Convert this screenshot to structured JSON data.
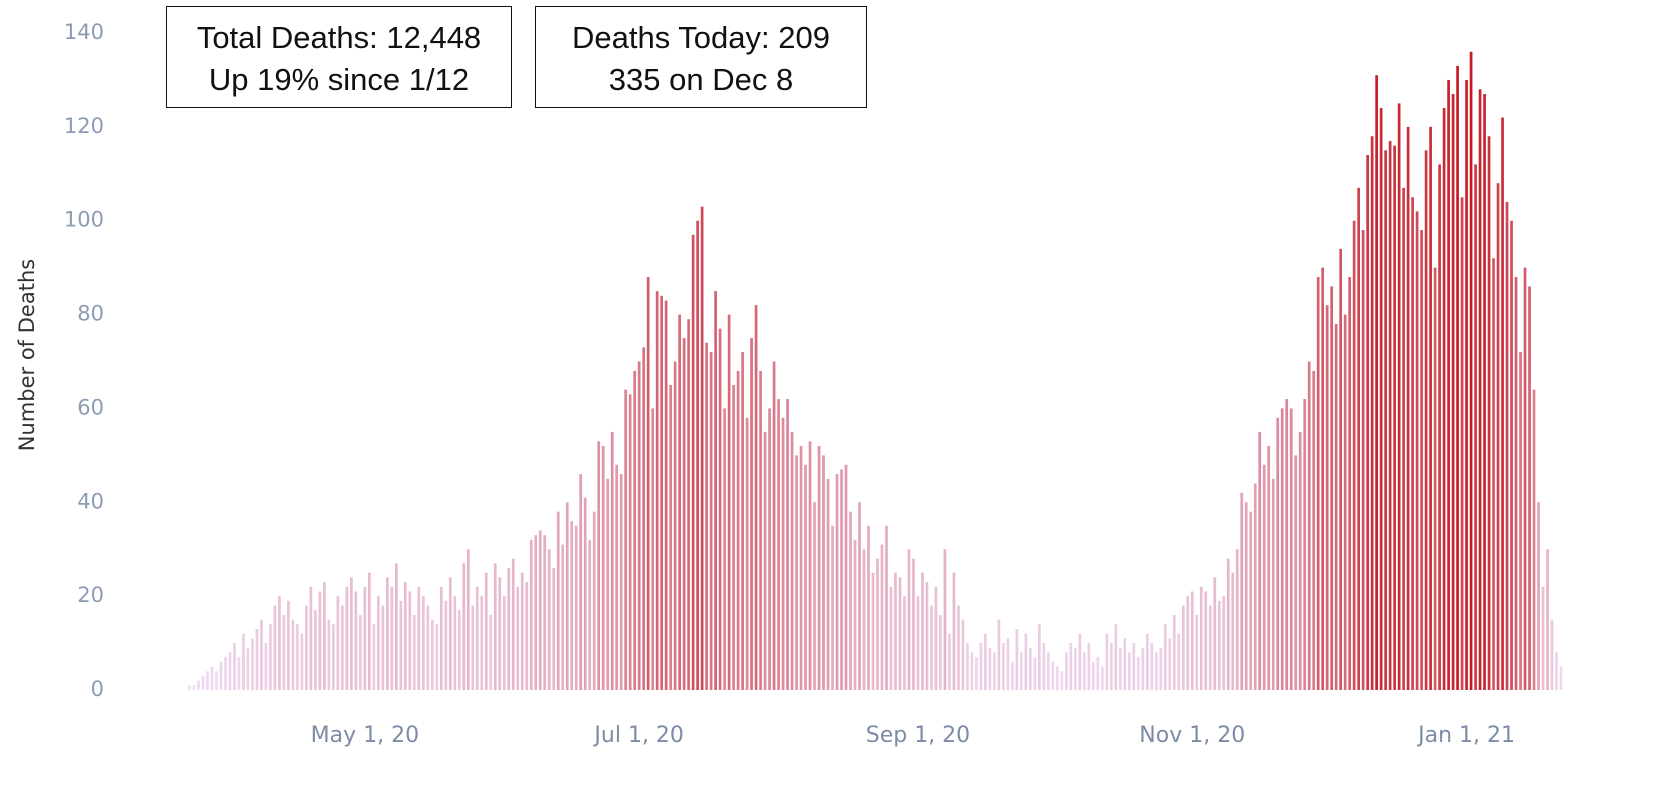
{
  "chart_data": {
    "type": "bar",
    "y_label": "Number of Deaths",
    "annotations": [
      {
        "lines": [
          "Total Deaths: 12,448",
          "Up 19% since 1/12"
        ]
      },
      {
        "lines": [
          "Deaths Today: 209",
          "335 on Dec 8"
        ]
      }
    ],
    "color_range": [
      "#efdff6",
      "#c3121c"
    ],
    "ylim": [
      0,
      140
    ],
    "yticks": [
      0,
      20,
      40,
      60,
      80,
      100,
      120,
      140
    ],
    "xlim": [
      "2020-03-20",
      "2021-01-24"
    ],
    "xticks": [
      {
        "value": "2020-05-01",
        "label": "May 1, 20"
      },
      {
        "value": "2020-07-01",
        "label": "Jul 1, 20"
      },
      {
        "value": "2020-09-01",
        "label": "Sep 1, 20"
      },
      {
        "value": "2020-11-01",
        "label": "Nov 1, 20"
      },
      {
        "value": "2021-01-01",
        "label": "Jan 1, 21"
      }
    ],
    "x": [
      "2020-03-22",
      "2020-03-23",
      "2020-03-24",
      "2020-03-25",
      "2020-03-26",
      "2020-03-27",
      "2020-03-28",
      "2020-03-29",
      "2020-03-30",
      "2020-03-31",
      "2020-04-01",
      "2020-04-02",
      "2020-04-03",
      "2020-04-04",
      "2020-04-05",
      "2020-04-06",
      "2020-04-07",
      "2020-04-08",
      "2020-04-09",
      "2020-04-10",
      "2020-04-11",
      "2020-04-12",
      "2020-04-13",
      "2020-04-14",
      "2020-04-15",
      "2020-04-16",
      "2020-04-17",
      "2020-04-18",
      "2020-04-19",
      "2020-04-20",
      "2020-04-21",
      "2020-04-22",
      "2020-04-23",
      "2020-04-24",
      "2020-04-25",
      "2020-04-26",
      "2020-04-27",
      "2020-04-28",
      "2020-04-29",
      "2020-04-30",
      "2020-05-01",
      "2020-05-02",
      "2020-05-03",
      "2020-05-04",
      "2020-05-05",
      "2020-05-06",
      "2020-05-07",
      "2020-05-08",
      "2020-05-09",
      "2020-05-10",
      "2020-05-11",
      "2020-05-12",
      "2020-05-13",
      "2020-05-14",
      "2020-05-15",
      "2020-05-16",
      "2020-05-17",
      "2020-05-18",
      "2020-05-19",
      "2020-05-20",
      "2020-05-21",
      "2020-05-22",
      "2020-05-23",
      "2020-05-24",
      "2020-05-25",
      "2020-05-26",
      "2020-05-27",
      "2020-05-28",
      "2020-05-29",
      "2020-05-30",
      "2020-05-31",
      "2020-06-01",
      "2020-06-02",
      "2020-06-03",
      "2020-06-04",
      "2020-06-05",
      "2020-06-06",
      "2020-06-07",
      "2020-06-08",
      "2020-06-09",
      "2020-06-10",
      "2020-06-11",
      "2020-06-12",
      "2020-06-13",
      "2020-06-14",
      "2020-06-15",
      "2020-06-16",
      "2020-06-17",
      "2020-06-18",
      "2020-06-19",
      "2020-06-20",
      "2020-06-21",
      "2020-06-22",
      "2020-06-23",
      "2020-06-24",
      "2020-06-25",
      "2020-06-26",
      "2020-06-27",
      "2020-06-28",
      "2020-06-29",
      "2020-06-30",
      "2020-07-01",
      "2020-07-02",
      "2020-07-03",
      "2020-07-04",
      "2020-07-05",
      "2020-07-06",
      "2020-07-07",
      "2020-07-08",
      "2020-07-09",
      "2020-07-10",
      "2020-07-11",
      "2020-07-12",
      "2020-07-13",
      "2020-07-14",
      "2020-07-15",
      "2020-07-16",
      "2020-07-17",
      "2020-07-18",
      "2020-07-19",
      "2020-07-20",
      "2020-07-21",
      "2020-07-22",
      "2020-07-23",
      "2020-07-24",
      "2020-07-25",
      "2020-07-26",
      "2020-07-27",
      "2020-07-28",
      "2020-07-29",
      "2020-07-30",
      "2020-07-31",
      "2020-08-01",
      "2020-08-02",
      "2020-08-03",
      "2020-08-04",
      "2020-08-05",
      "2020-08-06",
      "2020-08-07",
      "2020-08-08",
      "2020-08-09",
      "2020-08-10",
      "2020-08-11",
      "2020-08-12",
      "2020-08-13",
      "2020-08-14",
      "2020-08-15",
      "2020-08-16",
      "2020-08-17",
      "2020-08-18",
      "2020-08-19",
      "2020-08-20",
      "2020-08-21",
      "2020-08-22",
      "2020-08-23",
      "2020-08-24",
      "2020-08-25",
      "2020-08-26",
      "2020-08-27",
      "2020-08-28",
      "2020-08-29",
      "2020-08-30",
      "2020-08-31",
      "2020-09-01",
      "2020-09-02",
      "2020-09-03",
      "2020-09-04",
      "2020-09-05",
      "2020-09-06",
      "2020-09-07",
      "2020-09-08",
      "2020-09-09",
      "2020-09-10",
      "2020-09-11",
      "2020-09-12",
      "2020-09-13",
      "2020-09-14",
      "2020-09-15",
      "2020-09-16",
      "2020-09-17",
      "2020-09-18",
      "2020-09-19",
      "2020-09-20",
      "2020-09-21",
      "2020-09-22",
      "2020-09-23",
      "2020-09-24",
      "2020-09-25",
      "2020-09-26",
      "2020-09-27",
      "2020-09-28",
      "2020-09-29",
      "2020-09-30",
      "2020-10-01",
      "2020-10-02",
      "2020-10-03",
      "2020-10-04",
      "2020-10-05",
      "2020-10-06",
      "2020-10-07",
      "2020-10-08",
      "2020-10-09",
      "2020-10-10",
      "2020-10-11",
      "2020-10-12",
      "2020-10-13",
      "2020-10-14",
      "2020-10-15",
      "2020-10-16",
      "2020-10-17",
      "2020-10-18",
      "2020-10-19",
      "2020-10-20",
      "2020-10-21",
      "2020-10-22",
      "2020-10-23",
      "2020-10-24",
      "2020-10-25",
      "2020-10-26",
      "2020-10-27",
      "2020-10-28",
      "2020-10-29",
      "2020-10-30",
      "2020-10-31",
      "2020-11-01",
      "2020-11-02",
      "2020-11-03",
      "2020-11-04",
      "2020-11-05",
      "2020-11-06",
      "2020-11-07",
      "2020-11-08",
      "2020-11-09",
      "2020-11-10",
      "2020-11-11",
      "2020-11-12",
      "2020-11-13",
      "2020-11-14",
      "2020-11-15",
      "2020-11-16",
      "2020-11-17",
      "2020-11-18",
      "2020-11-19",
      "2020-11-20",
      "2020-11-21",
      "2020-11-22",
      "2020-11-23",
      "2020-11-24",
      "2020-11-25",
      "2020-11-26",
      "2020-11-27",
      "2020-11-28",
      "2020-11-29",
      "2020-11-30",
      "2020-12-01",
      "2020-12-02",
      "2020-12-03",
      "2020-12-04",
      "2020-12-05",
      "2020-12-06",
      "2020-12-07",
      "2020-12-08",
      "2020-12-09",
      "2020-12-10",
      "2020-12-11",
      "2020-12-12",
      "2020-12-13",
      "2020-12-14",
      "2020-12-15",
      "2020-12-16",
      "2020-12-17",
      "2020-12-18",
      "2020-12-19",
      "2020-12-20",
      "2020-12-21",
      "2020-12-22",
      "2020-12-23",
      "2020-12-24",
      "2020-12-25",
      "2020-12-26",
      "2020-12-27",
      "2020-12-28",
      "2020-12-29",
      "2020-12-30",
      "2020-12-31",
      "2021-01-01",
      "2021-01-02",
      "2021-01-03",
      "2021-01-04",
      "2021-01-05",
      "2021-01-06",
      "2021-01-07",
      "2021-01-08",
      "2021-01-09",
      "2021-01-10",
      "2021-01-11",
      "2021-01-12",
      "2021-01-13",
      "2021-01-14",
      "2021-01-15",
      "2021-01-16",
      "2021-01-17",
      "2021-01-18",
      "2021-01-19",
      "2021-01-20",
      "2021-01-21",
      "2021-01-22"
    ],
    "values": [
      0,
      1,
      1,
      2,
      3,
      4,
      5,
      4,
      6,
      7,
      8,
      10,
      7,
      12,
      9,
      11,
      13,
      15,
      10,
      14,
      18,
      20,
      16,
      19,
      15,
      14,
      12,
      18,
      22,
      17,
      21,
      23,
      15,
      14,
      20,
      18,
      22,
      24,
      21,
      16,
      22,
      25,
      14,
      20,
      18,
      24,
      22,
      27,
      19,
      23,
      21,
      16,
      22,
      20,
      18,
      15,
      14,
      22,
      19,
      24,
      20,
      17,
      27,
      30,
      18,
      22,
      20,
      25,
      16,
      27,
      24,
      20,
      26,
      28,
      22,
      25,
      23,
      32,
      33,
      34,
      33,
      30,
      26,
      38,
      31,
      40,
      36,
      35,
      46,
      41,
      32,
      38,
      53,
      52,
      45,
      55,
      48,
      46,
      64,
      63,
      68,
      70,
      73,
      88,
      60,
      85,
      84,
      83,
      65,
      70,
      80,
      75,
      79,
      97,
      100,
      103,
      74,
      72,
      85,
      77,
      60,
      80,
      65,
      68,
      72,
      58,
      75,
      82,
      68,
      55,
      60,
      70,
      62,
      58,
      62,
      55,
      50,
      52,
      48,
      53,
      40,
      52,
      50,
      45,
      35,
      46,
      47,
      48,
      38,
      32,
      40,
      30,
      35,
      25,
      28,
      31,
      35,
      22,
      25,
      24,
      20,
      30,
      28,
      20,
      25,
      23,
      18,
      22,
      16,
      30,
      12,
      25,
      18,
      15,
      10,
      8,
      7,
      10,
      12,
      9,
      8,
      15,
      10,
      11,
      6,
      13,
      8,
      12,
      9,
      7,
      14,
      10,
      8,
      6,
      5,
      4,
      8,
      10,
      9,
      12,
      8,
      10,
      6,
      7,
      5,
      12,
      10,
      14,
      9,
      11,
      8,
      10,
      7,
      9,
      12,
      10,
      8,
      9,
      14,
      11,
      16,
      12,
      18,
      20,
      21,
      16,
      22,
      21,
      18,
      24,
      19,
      20,
      28,
      25,
      30,
      42,
      40,
      38,
      44,
      55,
      48,
      52,
      45,
      58,
      60,
      62,
      60,
      50,
      55,
      62,
      70,
      68,
      88,
      90,
      82,
      86,
      78,
      94,
      80,
      88,
      100,
      107,
      98,
      114,
      118,
      131,
      124,
      115,
      117,
      116,
      125,
      107,
      120,
      105,
      102,
      98,
      115,
      120,
      90,
      112,
      124,
      130,
      127,
      133,
      105,
      130,
      136,
      112,
      128,
      127,
      118,
      92,
      108,
      122,
      104,
      100,
      88,
      72,
      90,
      86,
      64,
      40,
      22,
      30,
      15,
      8,
      5
    ]
  }
}
